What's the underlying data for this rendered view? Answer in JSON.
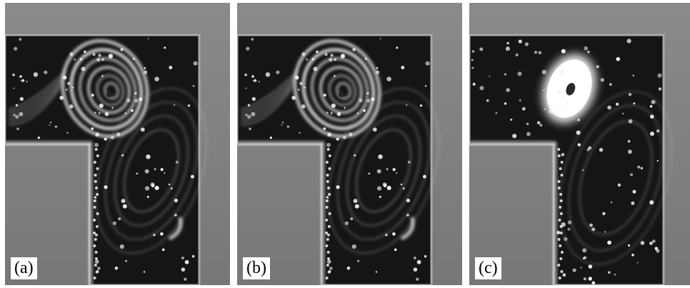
{
  "panels": [
    {
      "label": "(a)",
      "variant": "a"
    },
    {
      "label": "(b)",
      "variant": "a"
    },
    {
      "label": "(c)",
      "variant": "c"
    }
  ],
  "colors": {
    "background": "#7d7d7d",
    "fluid": "#151515",
    "tracer": "#f4f4f4",
    "wall": "#a8a8a8"
  }
}
